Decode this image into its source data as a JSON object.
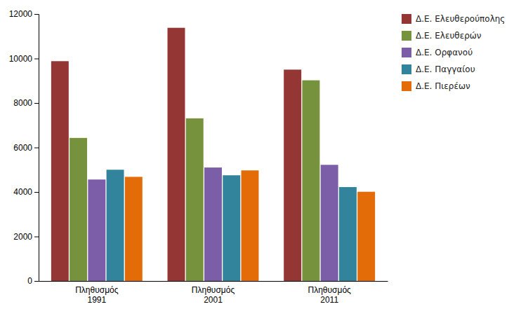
{
  "chart_data": {
    "type": "bar",
    "categories": [
      "Πληθυσμός\n1991",
      "Πληθυσμός\n2001",
      "Πληθυσμός\n2011"
    ],
    "series": [
      {
        "name": "Δ.Ε. Ελευθερούπολης",
        "color": "#943634",
        "values": [
          9880,
          11380,
          9500
        ]
      },
      {
        "name": "Δ.Ε. Ελευθερών",
        "color": "#76923C",
        "values": [
          6430,
          7310,
          9020
        ]
      },
      {
        "name": "Δ.Ε. Ορφανού",
        "color": "#7B5EA7",
        "values": [
          4560,
          5100,
          5220
        ]
      },
      {
        "name": "Δ.Ε. Παγγαίου",
        "color": "#31849B",
        "values": [
          5000,
          4750,
          4220
        ]
      },
      {
        "name": "Δ.Ε. Πιερέων",
        "color": "#E36C09",
        "values": [
          4680,
          4970,
          4010
        ]
      }
    ],
    "ylim": [
      0,
      12000
    ],
    "yticks": [
      0,
      2000,
      4000,
      6000,
      8000,
      10000,
      12000
    ],
    "grid": false,
    "legend": "right"
  }
}
